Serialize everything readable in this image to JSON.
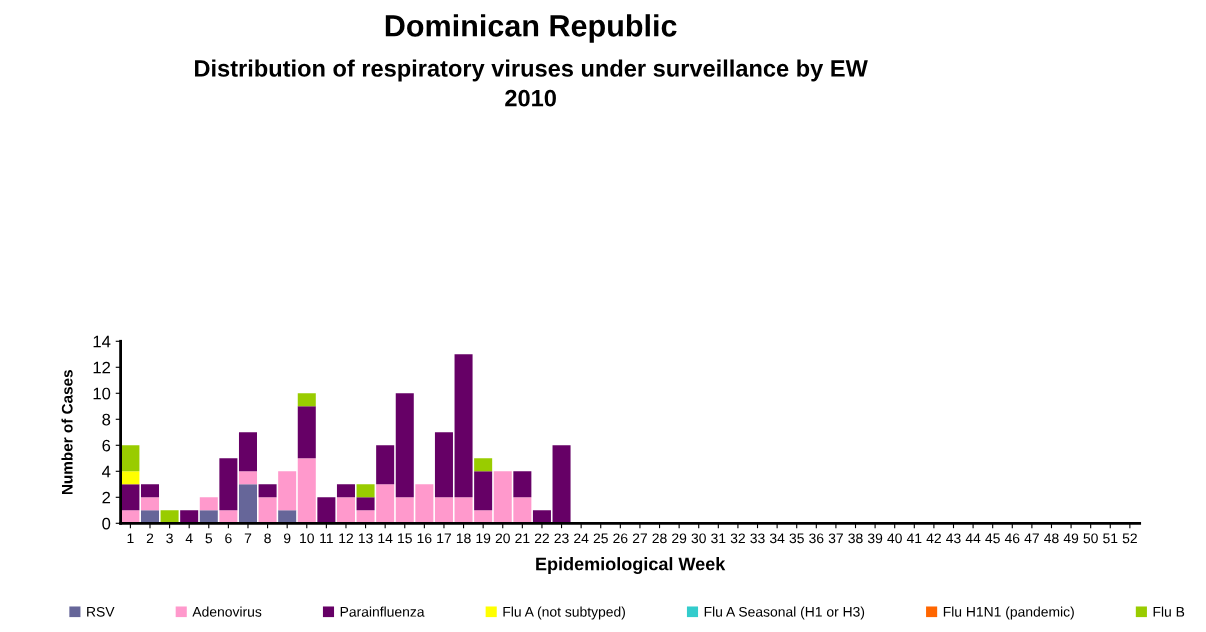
{
  "chart_data": {
    "type": "bar",
    "title": "Dominican Republic",
    "subtitle": "Distribution of respiratory viruses under surveillance by EW\n2010",
    "xlabel": "Epidemiological Week",
    "ylabel": "Number of Cases",
    "stacked": true,
    "legend": "bottom",
    "grid": false,
    "categories": [
      "1",
      "2",
      "3",
      "4",
      "5",
      "6",
      "7",
      "8",
      "9",
      "10",
      "11",
      "12",
      "13",
      "14",
      "15",
      "16",
      "17",
      "18",
      "19",
      "20",
      "21",
      "22",
      "23",
      "24",
      "25",
      "26",
      "27",
      "28",
      "29",
      "30",
      "31",
      "32",
      "33",
      "34",
      "35",
      "36",
      "37",
      "38",
      "39",
      "40",
      "41",
      "42",
      "43",
      "44",
      "45",
      "46",
      "47",
      "48",
      "49",
      "50",
      "51",
      "52"
    ],
    "ylim": [
      0,
      14
    ],
    "yticks": [
      0,
      2,
      4,
      6,
      8,
      10,
      12,
      14
    ],
    "series": [
      {
        "name": "RSV",
        "color": "#666699",
        "values": [
          0,
          1,
          0,
          0,
          1,
          0,
          3,
          0,
          1,
          0,
          0,
          0,
          0,
          0,
          0,
          0,
          0,
          0,
          0,
          0,
          0,
          0,
          0,
          0,
          0,
          0,
          0,
          0,
          0,
          0,
          0,
          0,
          0,
          0,
          0,
          0,
          0,
          0,
          0,
          0,
          0,
          0,
          0,
          0,
          0,
          0,
          0,
          0,
          0,
          0,
          0,
          0
        ]
      },
      {
        "name": "Adenovirus",
        "color": "#ff99cc",
        "values": [
          1,
          1,
          0,
          0,
          1,
          1,
          1,
          2,
          3,
          5,
          0,
          2,
          1,
          3,
          2,
          3,
          2,
          2,
          1,
          4,
          2,
          0,
          0,
          0,
          0,
          0,
          0,
          0,
          0,
          0,
          0,
          0,
          0,
          0,
          0,
          0,
          0,
          0,
          0,
          0,
          0,
          0,
          0,
          0,
          0,
          0,
          0,
          0,
          0,
          0,
          0,
          0
        ]
      },
      {
        "name": "Parainfluenza",
        "color": "#660066",
        "values": [
          2,
          1,
          0,
          1,
          0,
          4,
          3,
          1,
          0,
          4,
          2,
          1,
          1,
          3,
          8,
          0,
          5,
          11,
          3,
          0,
          2,
          1,
          6,
          0,
          0,
          0,
          0,
          0,
          0,
          0,
          0,
          0,
          0,
          0,
          0,
          0,
          0,
          0,
          0,
          0,
          0,
          0,
          0,
          0,
          0,
          0,
          0,
          0,
          0,
          0,
          0,
          0
        ]
      },
      {
        "name": "Flu A (not subtyped)",
        "color": "#ffff00",
        "values": [
          1,
          0,
          0,
          0,
          0,
          0,
          0,
          0,
          0,
          0,
          0,
          0,
          0,
          0,
          0,
          0,
          0,
          0,
          0,
          0,
          0,
          0,
          0,
          0,
          0,
          0,
          0,
          0,
          0,
          0,
          0,
          0,
          0,
          0,
          0,
          0,
          0,
          0,
          0,
          0,
          0,
          0,
          0,
          0,
          0,
          0,
          0,
          0,
          0,
          0,
          0,
          0
        ]
      },
      {
        "name": "Flu A Seasonal (H1 or H3)",
        "color": "#33cccc",
        "values": [
          0,
          0,
          0,
          0,
          0,
          0,
          0,
          0,
          0,
          0,
          0,
          0,
          0,
          0,
          0,
          0,
          0,
          0,
          0,
          0,
          0,
          0,
          0,
          0,
          0,
          0,
          0,
          0,
          0,
          0,
          0,
          0,
          0,
          0,
          0,
          0,
          0,
          0,
          0,
          0,
          0,
          0,
          0,
          0,
          0,
          0,
          0,
          0,
          0,
          0,
          0,
          0
        ]
      },
      {
        "name": "Flu H1N1 (pandemic)",
        "color": "#ff6600",
        "values": [
          0,
          0,
          0,
          0,
          0,
          0,
          0,
          0,
          0,
          0,
          0,
          0,
          0,
          0,
          0,
          0,
          0,
          0,
          0,
          0,
          0,
          0,
          0,
          0,
          0,
          0,
          0,
          0,
          0,
          0,
          0,
          0,
          0,
          0,
          0,
          0,
          0,
          0,
          0,
          0,
          0,
          0,
          0,
          0,
          0,
          0,
          0,
          0,
          0,
          0,
          0,
          0
        ]
      },
      {
        "name": "Flu B",
        "color": "#99cc00",
        "values": [
          2,
          0,
          1,
          0,
          0,
          0,
          0,
          0,
          0,
          1,
          0,
          0,
          1,
          0,
          0,
          0,
          0,
          0,
          1,
          0,
          0,
          0,
          0,
          0,
          0,
          0,
          0,
          0,
          0,
          0,
          0,
          0,
          0,
          0,
          0,
          0,
          0,
          0,
          0,
          0,
          0,
          0,
          0,
          0,
          0,
          0,
          0,
          0,
          0,
          0,
          0,
          0
        ]
      }
    ]
  }
}
